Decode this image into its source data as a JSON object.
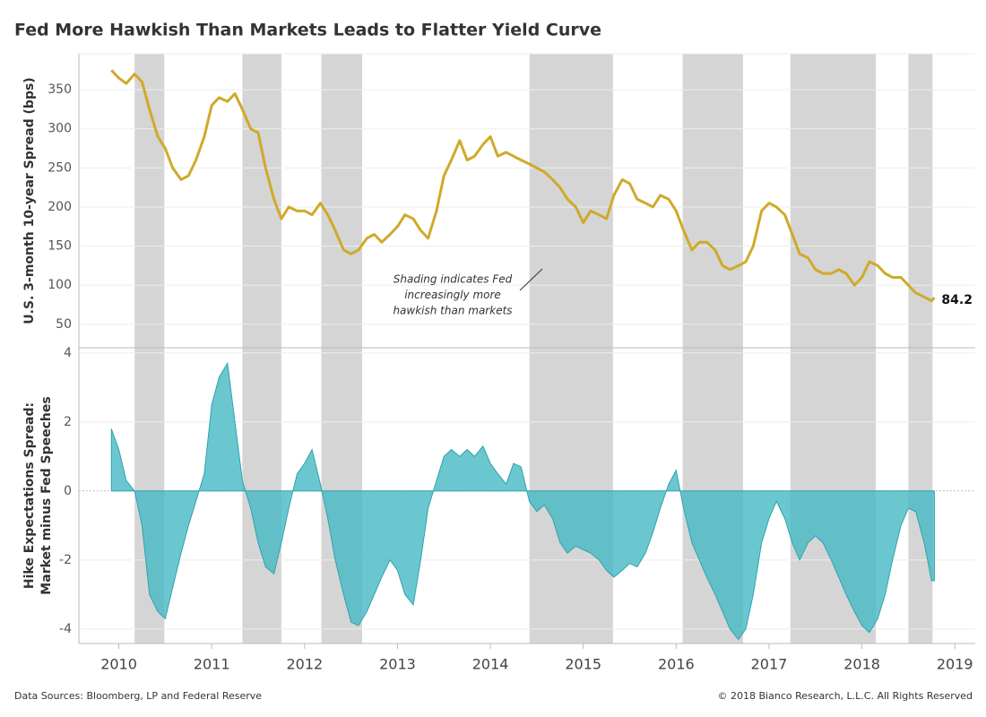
{
  "title": "Fed More Hawkish Than Markets Leads to Flatter Yield Curve",
  "footer": {
    "source": "Data Sources: Bloomberg, LP and Federal Reserve",
    "copyright": "© 2018 Bianco Research, L.L.C. All Rights Reserved"
  },
  "chart_data": [
    {
      "type": "line",
      "y_label": "U.S. 3-month 10-year Spread (bps)",
      "color": "#cfaa2a",
      "ylim": [
        20,
        396
      ],
      "yticks": [
        50,
        100,
        150,
        200,
        250,
        300,
        350
      ],
      "grid": true,
      "annotation": [
        "Shading indicates Fed",
        "increasingly more",
        "hawkish than markets"
      ],
      "shaded_regions": [
        [
          2010.17,
          2010.49
        ],
        [
          2011.33,
          2011.75
        ],
        [
          2012.18,
          2012.62
        ],
        [
          2014.42,
          2015.32
        ],
        [
          2016.07,
          2016.72
        ],
        [
          2017.23,
          2018.15
        ],
        [
          2018.5,
          2018.76
        ]
      ],
      "x": [
        2009.92,
        2010.0,
        2010.08,
        2010.17,
        2010.25,
        2010.33,
        2010.42,
        2010.5,
        2010.58,
        2010.67,
        2010.75,
        2010.83,
        2010.92,
        2011.0,
        2011.08,
        2011.17,
        2011.25,
        2011.33,
        2011.42,
        2011.5,
        2011.58,
        2011.67,
        2011.75,
        2011.83,
        2011.92,
        2012.0,
        2012.08,
        2012.17,
        2012.25,
        2012.33,
        2012.42,
        2012.5,
        2012.58,
        2012.67,
        2012.75,
        2012.83,
        2012.92,
        2013.0,
        2013.08,
        2013.17,
        2013.25,
        2013.33,
        2013.42,
        2013.5,
        2013.58,
        2013.67,
        2013.75,
        2013.83,
        2013.92,
        2014.0,
        2014.08,
        2014.17,
        2014.25,
        2014.33,
        2014.42,
        2014.5,
        2014.58,
        2014.67,
        2014.75,
        2014.83,
        2014.92,
        2015.0,
        2015.08,
        2015.17,
        2015.25,
        2015.33,
        2015.42,
        2015.5,
        2015.58,
        2015.67,
        2015.75,
        2015.83,
        2015.92,
        2016.0,
        2016.08,
        2016.17,
        2016.25,
        2016.33,
        2016.42,
        2016.5,
        2016.58,
        2016.67,
        2016.75,
        2016.83,
        2016.92,
        2017.0,
        2017.08,
        2017.17,
        2017.25,
        2017.33,
        2017.42,
        2017.5,
        2017.58,
        2017.67,
        2017.75,
        2017.83,
        2017.92,
        2018.0,
        2018.08,
        2018.17,
        2018.25,
        2018.33,
        2018.42,
        2018.5,
        2018.58,
        2018.67,
        2018.75,
        2018.78
      ],
      "values": [
        375,
        365,
        358,
        370,
        360,
        325,
        290,
        275,
        250,
        235,
        240,
        260,
        290,
        330,
        340,
        335,
        345,
        325,
        300,
        295,
        250,
        210,
        185,
        200,
        195,
        195,
        190,
        205,
        190,
        170,
        145,
        140,
        145,
        160,
        165,
        155,
        165,
        175,
        190,
        185,
        170,
        160,
        195,
        240,
        260,
        285,
        260,
        265,
        280,
        290,
        265,
        270,
        265,
        260,
        255,
        250,
        245,
        235,
        225,
        210,
        200,
        180,
        195,
        190,
        185,
        215,
        235,
        230,
        210,
        205,
        200,
        215,
        210,
        195,
        170,
        145,
        155,
        155,
        145,
        125,
        120,
        125,
        130,
        150,
        195,
        205,
        200,
        190,
        165,
        140,
        135,
        120,
        115,
        115,
        120,
        115,
        100,
        110,
        130,
        125,
        115,
        110,
        110,
        100,
        90,
        85,
        80,
        84.2
      ]
    },
    {
      "type": "area",
      "y_label": [
        "Hike Expectations Spread:",
        "Market minus Fed Speeches"
      ],
      "color": "#45b9c4",
      "xlim": [
        2009.57,
        2019.22
      ],
      "xticks": [
        2010,
        2011,
        2012,
        2013,
        2014,
        2015,
        2016,
        2017,
        2018,
        2019
      ],
      "ylim": [
        -4.42,
        4.15
      ],
      "yticks": [
        -4,
        -2,
        0,
        2,
        4
      ],
      "grid": true,
      "x": [
        2009.92,
        2010.0,
        2010.08,
        2010.17,
        2010.25,
        2010.33,
        2010.42,
        2010.5,
        2010.58,
        2010.67,
        2010.75,
        2010.83,
        2010.92,
        2011.0,
        2011.08,
        2011.17,
        2011.25,
        2011.33,
        2011.42,
        2011.5,
        2011.58,
        2011.67,
        2011.75,
        2011.83,
        2011.92,
        2012.0,
        2012.08,
        2012.17,
        2012.25,
        2012.33,
        2012.42,
        2012.5,
        2012.58,
        2012.67,
        2012.75,
        2012.83,
        2012.92,
        2013.0,
        2013.08,
        2013.17,
        2013.25,
        2013.33,
        2013.42,
        2013.5,
        2013.58,
        2013.67,
        2013.75,
        2013.83,
        2013.92,
        2014.0,
        2014.08,
        2014.17,
        2014.25,
        2014.33,
        2014.42,
        2014.5,
        2014.58,
        2014.67,
        2014.75,
        2014.83,
        2014.92,
        2015.0,
        2015.08,
        2015.17,
        2015.25,
        2015.33,
        2015.42,
        2015.5,
        2015.58,
        2015.67,
        2015.75,
        2015.83,
        2015.92,
        2016.0,
        2016.08,
        2016.17,
        2016.25,
        2016.33,
        2016.42,
        2016.5,
        2016.58,
        2016.67,
        2016.75,
        2016.83,
        2016.92,
        2017.0,
        2017.08,
        2017.17,
        2017.25,
        2017.33,
        2017.42,
        2017.5,
        2017.58,
        2017.67,
        2017.75,
        2017.83,
        2017.92,
        2018.0,
        2018.08,
        2018.17,
        2018.25,
        2018.33,
        2018.42,
        2018.5,
        2018.58,
        2018.67,
        2018.75,
        2018.78
      ],
      "values": [
        1.8,
        1.2,
        0.3,
        0,
        -1.0,
        -3.0,
        -3.5,
        -3.7,
        -2.8,
        -1.8,
        -1.0,
        -0.3,
        0.5,
        2.5,
        3.3,
        3.7,
        2.0,
        0.3,
        -0.5,
        -1.5,
        -2.2,
        -2.4,
        -1.5,
        -0.5,
        0.5,
        0.8,
        1.2,
        0.2,
        -0.8,
        -2.0,
        -3.0,
        -3.8,
        -3.9,
        -3.5,
        -3.0,
        -2.5,
        -2.0,
        -2.3,
        -3.0,
        -3.3,
        -2.0,
        -0.5,
        0.3,
        1.0,
        1.2,
        1.0,
        1.2,
        1.0,
        1.3,
        0.8,
        0.5,
        0.2,
        0.8,
        0.7,
        -0.3,
        -0.6,
        -0.4,
        -0.8,
        -1.5,
        -1.8,
        -1.6,
        -1.7,
        -1.8,
        -2.0,
        -2.3,
        -2.5,
        -2.3,
        -2.1,
        -2.2,
        -1.8,
        -1.2,
        -0.5,
        0.2,
        0.6,
        -0.5,
        -1.5,
        -2.0,
        -2.5,
        -3.0,
        -3.5,
        -4.0,
        -4.3,
        -4.0,
        -3.0,
        -1.5,
        -0.8,
        -0.3,
        -0.8,
        -1.5,
        -2.0,
        -1.5,
        -1.3,
        -1.5,
        -2.0,
        -2.5,
        -3.0,
        -3.5,
        -3.9,
        -4.1,
        -3.7,
        -3.0,
        -2.0,
        -1.0,
        -0.5,
        -0.6,
        -1.5,
        -2.6,
        -2.6
      ]
    }
  ]
}
